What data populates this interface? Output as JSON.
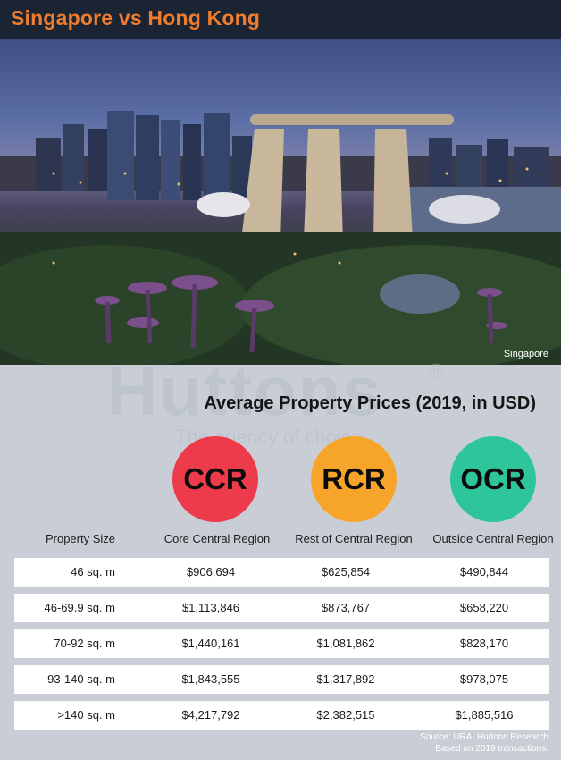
{
  "header": {
    "title": "Singapore vs Hong Kong"
  },
  "photo": {
    "caption": "Singapore"
  },
  "watermark": {
    "brand": "Huttons",
    "registered": "®",
    "tagline": "The agency of choice"
  },
  "heading": "Average Property Prices (2019, in USD)",
  "regions": [
    {
      "code": "CCR",
      "name": "Core Central Region",
      "color": "#ee3b4c"
    },
    {
      "code": "RCR",
      "name": "Rest of Central Region",
      "color": "#f7a42b"
    },
    {
      "code": "OCR",
      "name": "Outside Central Region",
      "color": "#2fc59a"
    }
  ],
  "table": {
    "size_header": "Property Size",
    "rows": [
      {
        "size": "46 sq. m",
        "ccr": "$906,694",
        "rcr": "$625,854",
        "ocr": "$490,844"
      },
      {
        "size": "46-69.9 sq. m",
        "ccr": "$1,113,846",
        "rcr": "$873,767",
        "ocr": "$658,220"
      },
      {
        "size": "70-92 sq. m",
        "ccr": "$1,440,161",
        "rcr": "$1,081,862",
        "ocr": "$828,170"
      },
      {
        "size": "93-140 sq. m",
        "ccr": "$1,843,555",
        "rcr": "$1,317,892",
        "ocr": "$978,075"
      },
      {
        "size": ">140 sq. m",
        "ccr": "$4,217,792",
        "rcr": "$2,382,515",
        "ocr": "$1,885,516"
      }
    ]
  },
  "source": {
    "line1": "Source: URA, Huttons Research",
    "line2": "Based on 2019 transactions."
  }
}
